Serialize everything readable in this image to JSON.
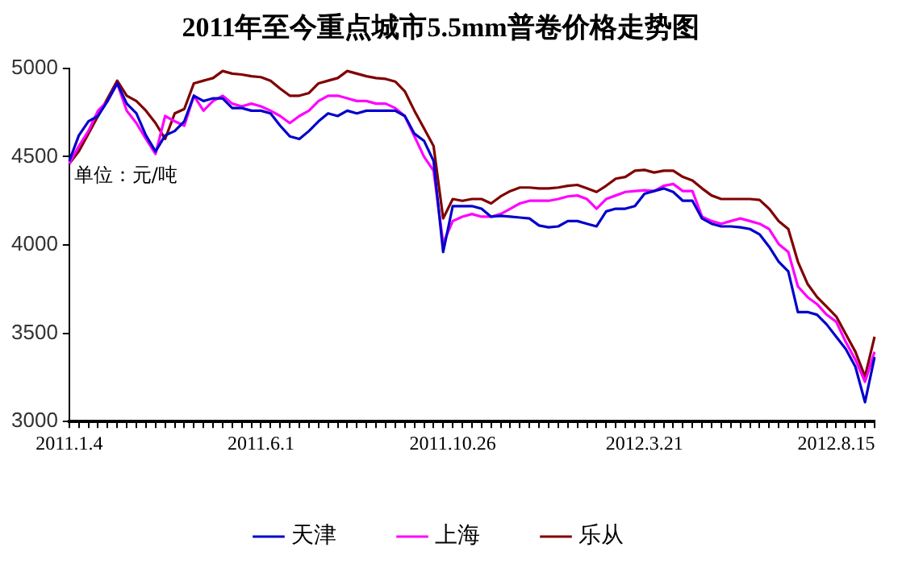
{
  "chart_data": {
    "type": "line",
    "title": "2011年至今重点城市5.5mm普卷价格走势图",
    "annotations": [
      "单位：元/吨"
    ],
    "categories": [
      "2011.1.4",
      null,
      null,
      null,
      null,
      null,
      null,
      null,
      null,
      null,
      null,
      null,
      null,
      null,
      null,
      null,
      null,
      null,
      null,
      null,
      "2011.6.1",
      null,
      null,
      null,
      null,
      null,
      null,
      null,
      null,
      null,
      null,
      null,
      null,
      null,
      null,
      null,
      null,
      null,
      null,
      null,
      "2011.10.26",
      null,
      null,
      null,
      null,
      null,
      null,
      null,
      null,
      null,
      null,
      null,
      null,
      null,
      null,
      null,
      null,
      null,
      null,
      null,
      "2012.3.21",
      null,
      null,
      null,
      null,
      null,
      null,
      null,
      null,
      null,
      null,
      null,
      null,
      null,
      null,
      null,
      null,
      null,
      null,
      null,
      "2012.8.15",
      null,
      null,
      null,
      null
    ],
    "series": [
      {
        "name": "天津",
        "color": "#0000cc",
        "values": [
          4475,
          4620,
          4700,
          4730,
          4815,
          4915,
          4800,
          4745,
          4620,
          4530,
          4620,
          4645,
          4700,
          4845,
          4815,
          4830,
          4830,
          4775,
          4775,
          4760,
          4760,
          4745,
          4675,
          4615,
          4600,
          4645,
          4700,
          4745,
          4730,
          4760,
          4745,
          4760,
          4760,
          4760,
          4760,
          4730,
          4630,
          4590,
          4475,
          3960,
          4220,
          4220,
          4220,
          4205,
          4160,
          4165,
          4160,
          4155,
          4150,
          4110,
          4100,
          4105,
          4135,
          4135,
          4120,
          4105,
          4190,
          4205,
          4205,
          4220,
          4290,
          4305,
          4320,
          4300,
          4250,
          4250,
          4150,
          4120,
          4105,
          4105,
          4100,
          4090,
          4060,
          3990,
          3905,
          3850,
          3620,
          3620,
          3605,
          3550,
          3480,
          3410,
          3310,
          3110,
          3365
        ]
      },
      {
        "name": "上海",
        "color": "#ff00ff",
        "values": [
          4460,
          4560,
          4645,
          4760,
          4815,
          4915,
          4760,
          4690,
          4600,
          4515,
          4730,
          4700,
          4675,
          4845,
          4760,
          4815,
          4845,
          4800,
          4785,
          4800,
          4785,
          4760,
          4730,
          4690,
          4730,
          4760,
          4815,
          4845,
          4845,
          4830,
          4815,
          4815,
          4800,
          4800,
          4775,
          4730,
          4615,
          4500,
          4420,
          4010,
          4135,
          4160,
          4175,
          4160,
          4160,
          4175,
          4205,
          4235,
          4250,
          4250,
          4250,
          4260,
          4275,
          4280,
          4260,
          4205,
          4260,
          4280,
          4300,
          4305,
          4310,
          4305,
          4335,
          4345,
          4305,
          4305,
          4160,
          4135,
          4120,
          4135,
          4150,
          4135,
          4120,
          4090,
          4005,
          3960,
          3765,
          3705,
          3665,
          3605,
          3565,
          3450,
          3350,
          3225,
          3395
        ]
      },
      {
        "name": "乐从",
        "color": "#800000",
        "values": [
          4460,
          4530,
          4630,
          4730,
          4830,
          4930,
          4845,
          4815,
          4760,
          4690,
          4600,
          4745,
          4770,
          4915,
          4930,
          4945,
          4985,
          4970,
          4965,
          4955,
          4950,
          4930,
          4885,
          4845,
          4845,
          4860,
          4915,
          4930,
          4945,
          4985,
          4970,
          4955,
          4945,
          4940,
          4925,
          4870,
          4760,
          4660,
          4560,
          4150,
          4260,
          4250,
          4260,
          4260,
          4235,
          4275,
          4305,
          4325,
          4325,
          4320,
          4320,
          4325,
          4335,
          4340,
          4320,
          4300,
          4335,
          4375,
          4385,
          4420,
          4425,
          4410,
          4420,
          4420,
          4385,
          4365,
          4320,
          4280,
          4260,
          4260,
          4260,
          4260,
          4255,
          4205,
          4135,
          4090,
          3905,
          3780,
          3705,
          3650,
          3595,
          3495,
          3395,
          3255,
          3480
        ]
      }
    ],
    "ylim": [
      3000,
      5000
    ],
    "yticks": [
      3000,
      3500,
      4000,
      4500,
      5000
    ],
    "grid": false,
    "legend": "bottom",
    "marker": "none",
    "line_style": "solid"
  }
}
